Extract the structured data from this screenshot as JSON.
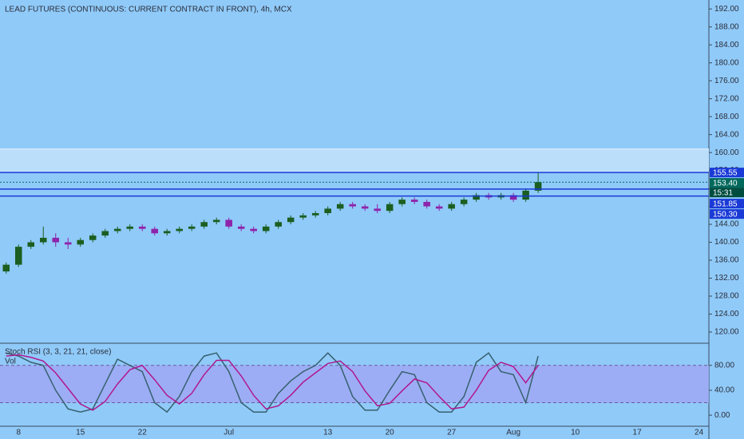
{
  "chart_data": [
    {
      "type": "candlestick",
      "title": "LEAD FUTURES (CONTINUOUS: CURRENT CONTRACT IN FRONT), 4h, MCX",
      "x": [
        -1,
        0,
        1,
        2,
        3,
        4,
        5,
        6,
        7,
        8,
        9,
        10,
        11,
        12,
        13,
        14,
        15,
        16,
        17,
        18,
        19,
        20,
        21,
        22,
        23,
        24,
        25,
        26,
        27,
        28,
        29,
        30,
        31,
        32,
        33,
        34,
        35,
        36,
        37,
        38,
        39,
        40,
        41,
        42
      ],
      "open": [
        133.5,
        135,
        139,
        140,
        141,
        140,
        139.5,
        140.5,
        141.5,
        142.5,
        143,
        143.5,
        143,
        142,
        142.5,
        143,
        143.5,
        144.5,
        145,
        143.5,
        143,
        142.5,
        143.5,
        144.5,
        145.5,
        146,
        146.5,
        147.5,
        148.5,
        148,
        147.5,
        147,
        148.5,
        149.5,
        149,
        148,
        147.5,
        148.5,
        149.5,
        150.5,
        150,
        150.5,
        149.5,
        151.5
      ],
      "high": [
        135.5,
        139.5,
        140.5,
        143.5,
        142,
        141,
        141,
        142,
        143,
        143.5,
        144,
        144,
        143.5,
        143,
        143.5,
        144,
        145,
        145.5,
        145.5,
        144,
        143.5,
        144,
        145,
        146,
        146.5,
        147,
        148,
        149,
        149,
        148.5,
        148.5,
        149,
        150,
        150,
        149.5,
        148.5,
        149,
        150,
        151,
        151,
        151,
        151,
        152,
        155.5
      ],
      "low": [
        133,
        134.5,
        138.5,
        139.5,
        139,
        138.5,
        139,
        140,
        141,
        142,
        142.5,
        142.5,
        141.5,
        141.5,
        142,
        142.5,
        143,
        144,
        143,
        142.5,
        142,
        142,
        143,
        144,
        145,
        145.5,
        146,
        147,
        147.5,
        147,
        146.5,
        146.5,
        148,
        148.5,
        147.5,
        147,
        147,
        148,
        149,
        149.5,
        149.5,
        149,
        149,
        151
      ],
      "close": [
        135,
        139,
        140,
        141,
        140,
        139.5,
        140.5,
        141.5,
        142.5,
        143,
        143.5,
        143,
        142,
        142.5,
        143,
        143.5,
        144.5,
        145,
        143.5,
        143,
        142.5,
        143.5,
        144.5,
        145.5,
        146,
        146.5,
        147.5,
        148.5,
        148,
        147.5,
        147,
        148.5,
        149.5,
        149,
        148,
        147.5,
        148.5,
        149.5,
        150.5,
        150,
        150.5,
        149.5,
        151.5,
        153.4
      ],
      "up_color": "#1b5e20",
      "down_color": "#8e24aa",
      "xlim": [
        -1.5,
        55.8
      ],
      "xticks": [
        {
          "value": 0,
          "label": "8"
        },
        {
          "value": 5,
          "label": "15"
        },
        {
          "value": 10,
          "label": "22"
        },
        {
          "value": 17,
          "label": "Jul"
        },
        {
          "value": 25,
          "label": "13"
        },
        {
          "value": 30,
          "label": "20"
        },
        {
          "value": 35,
          "label": "27"
        },
        {
          "value": 40,
          "label": "Aug"
        },
        {
          "value": 45,
          "label": "10"
        },
        {
          "value": 50,
          "label": "17"
        },
        {
          "value": 55,
          "label": "24"
        }
      ],
      "ylim": [
        117.5,
        194
      ],
      "yticks": [
        {
          "value": 120,
          "label": "120.00"
        },
        {
          "value": 124,
          "label": "124.00"
        },
        {
          "value": 128,
          "label": "128.00"
        },
        {
          "value": 132,
          "label": "132.00"
        },
        {
          "value": 136,
          "label": "136.00"
        },
        {
          "value": 140,
          "label": "140.00"
        },
        {
          "value": 144,
          "label": "144.00"
        },
        {
          "value": 148,
          "label": "148.00"
        },
        {
          "value": 152,
          "label": "152.00"
        },
        {
          "value": 156,
          "label": "156.00"
        },
        {
          "value": 160,
          "label": "160.00"
        },
        {
          "value": 164,
          "label": "164.00"
        },
        {
          "value": 168,
          "label": "168.00"
        },
        {
          "value": 172,
          "label": "172.00"
        },
        {
          "value": 176,
          "label": "176.00"
        },
        {
          "value": 180,
          "label": "180.00"
        },
        {
          "value": 184,
          "label": "184.00"
        },
        {
          "value": 188,
          "label": "188.00"
        },
        {
          "value": 192,
          "label": "192.00"
        }
      ],
      "zone": [
        155.55,
        160.8
      ],
      "levels": [
        {
          "value": 155.55,
          "label": "155.55",
          "color": "#1a3ad6",
          "dashed": false
        },
        {
          "value": 153.4,
          "label": "153.40",
          "color": "#00695c",
          "dashed": true
        },
        {
          "value": 151.85,
          "label": "151.85",
          "color": "#1a3ad6",
          "dashed": false
        },
        {
          "value": 150.3,
          "label": "150.30",
          "color": "#1a3ad6",
          "dashed": false
        }
      ],
      "countdown": "15:31"
    },
    {
      "type": "line",
      "title": "Stoch RSI (3, 3, 21, 21, close)",
      "subtitle": "Vol",
      "x": [
        -1,
        0,
        1,
        2,
        3,
        4,
        5,
        6,
        7,
        8,
        9,
        10,
        11,
        12,
        13,
        14,
        15,
        16,
        17,
        18,
        19,
        20,
        21,
        22,
        23,
        24,
        25,
        26,
        27,
        28,
        29,
        30,
        31,
        32,
        33,
        34,
        35,
        36,
        37,
        38,
        39,
        40,
        41,
        42
      ],
      "series": [
        {
          "color": "#37606e",
          "values": [
            100,
            95,
            85,
            80,
            40,
            10,
            5,
            10,
            50,
            90,
            80,
            70,
            20,
            5,
            30,
            70,
            95,
            100,
            70,
            20,
            5,
            5,
            35,
            55,
            70,
            80,
            100,
            80,
            30,
            8,
            8,
            40,
            70,
            65,
            20,
            5,
            5,
            30,
            85,
            100,
            70,
            65,
            20,
            95
          ]
        },
        {
          "color": "#b0188f",
          "values": [
            95,
            97,
            93,
            87,
            68,
            43,
            18,
            8,
            22,
            50,
            73,
            80,
            57,
            32,
            18,
            35,
            65,
            88,
            88,
            63,
            32,
            10,
            15,
            32,
            53,
            68,
            83,
            87,
            70,
            39,
            15,
            19,
            39,
            58,
            52,
            30,
            10,
            13,
            40,
            72,
            85,
            78,
            52,
            80
          ]
        }
      ],
      "band": [
        20,
        80
      ],
      "ylim": [
        -17.8,
        115.6
      ],
      "yticks": [
        {
          "value": 0,
          "label": "0.00"
        },
        {
          "value": 40,
          "label": "40.00"
        },
        {
          "value": 80,
          "label": "80.00"
        }
      ]
    }
  ]
}
